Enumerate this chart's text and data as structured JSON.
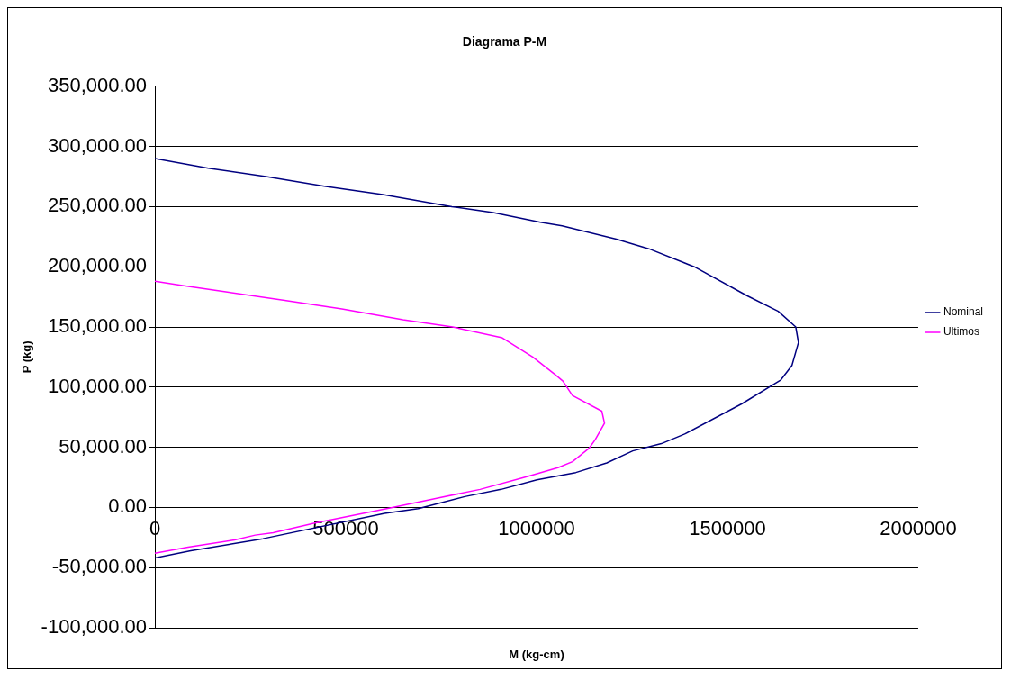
{
  "chart_data": {
    "type": "line",
    "title": "Diagrama P-M",
    "xlabel": "M (kg-cm)",
    "ylabel": "P (kg)",
    "xlim": [
      0,
      2000000
    ],
    "xticks": [
      0,
      500000,
      1000000,
      1500000,
      2000000
    ],
    "ylim": [
      -100000,
      350000
    ],
    "yticks": [
      {
        "value": -100000,
        "label": "-100,000.00"
      },
      {
        "value": -50000,
        "label": "-50,000.00"
      },
      {
        "value": 0,
        "label": "0.00"
      },
      {
        "value": 50000,
        "label": "50,000.00"
      },
      {
        "value": 100000,
        "label": "100,000.00"
      },
      {
        "value": 150000,
        "label": "150,000.00"
      },
      {
        "value": 200000,
        "label": "200,000.00"
      },
      {
        "value": 250000,
        "label": "250,000.00"
      },
      {
        "value": 300000,
        "label": "300,000.00"
      },
      {
        "value": 350000,
        "label": "350,000.00"
      }
    ],
    "grid": "y",
    "legend": "right",
    "marker": "none",
    "line_style": "solid",
    "series": [
      {
        "name": "Nominal",
        "color": "#000080",
        "x": [
          0,
          140000,
          291000,
          444000,
          597000,
          778000,
          886000,
          1010000,
          1067000,
          1209000,
          1294000,
          1413000,
          1551000,
          1633000,
          1679000,
          1686000,
          1669000,
          1640000,
          1537000,
          1388000,
          1327000,
          1252000,
          1184000,
          1103000,
          1001000,
          907000,
          812000,
          690000,
          602000,
          283000,
          94000,
          0
        ],
        "values": [
          290000,
          282000,
          275000,
          267000,
          260000,
          250000,
          245000,
          237000,
          234000,
          223000,
          215000,
          200000,
          176000,
          163000,
          150000,
          137000,
          118000,
          106000,
          86000,
          61000,
          53000,
          47000,
          37000,
          29000,
          23000,
          15000,
          9000,
          -1000,
          -5000,
          -26000,
          -36000,
          -42000
        ]
      },
      {
        "name": "Ultimos",
        "color": "#ff00ff",
        "x": [
          0,
          80000,
          190000,
          340000,
          490000,
          650000,
          780000,
          910000,
          990000,
          1050000,
          1069000,
          1094000,
          1171000,
          1178000,
          1153000,
          1137000,
          1094000,
          1056000,
          1001000,
          968000,
          852000,
          744000,
          622000,
          419000,
          310000,
          263000,
          209000,
          87000,
          0
        ],
        "values": [
          188000,
          184000,
          179000,
          172000,
          165000,
          156000,
          150000,
          141000,
          125000,
          110000,
          105000,
          93000,
          80000,
          70000,
          56000,
          49000,
          38000,
          33000,
          28000,
          25000,
          15000,
          8000,
          0,
          -13000,
          -21000,
          -23000,
          -27000,
          -33000,
          -38000
        ]
      }
    ]
  }
}
